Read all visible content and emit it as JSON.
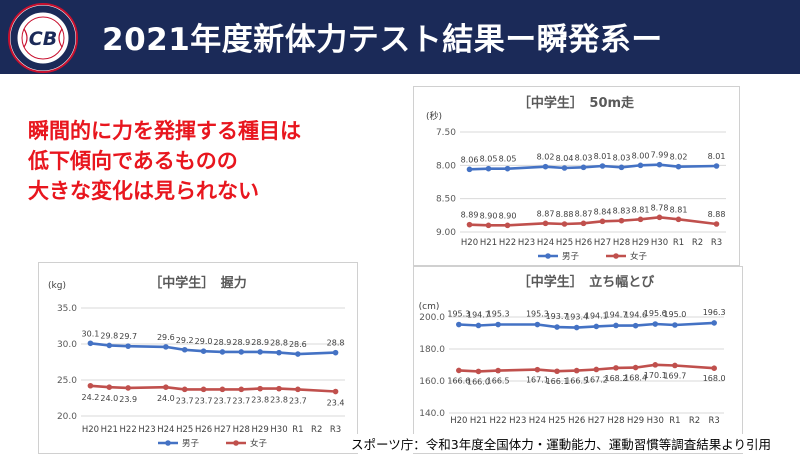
{
  "header": {
    "title": "2021年度新体力テスト結果ー瞬発系ー"
  },
  "logo": {
    "text_top": "Community Innovation",
    "text_bottom": "Baseball",
    "mark": "CB"
  },
  "message": {
    "lines": [
      "瞬間的に力を発揮する種目は",
      "低下傾向であるものの",
      "大きな変化は見られない"
    ]
  },
  "source": "スポーツ庁：令和3年度全国体力・運動能力、運動習慣等調査結果より引用",
  "colors": {
    "boys": "#4472c4",
    "girls": "#c0504d",
    "header_bg": "#1b2a58",
    "accent_red": "#e8161e"
  },
  "chart_data": [
    {
      "id": "run50",
      "type": "line",
      "title": "［中学生］　50m走",
      "unit": "(秒)",
      "categories": [
        "H20",
        "H21",
        "H22",
        "H23",
        "H24",
        "H25",
        "H26",
        "H27",
        "H28",
        "H29",
        "H30",
        "R1",
        "R2",
        "R3"
      ],
      "y_ticks": [
        "7.50",
        "8.00",
        "8.50",
        "9.00"
      ],
      "ylim": [
        9.0,
        7.5
      ],
      "y_reversed": true,
      "legend": "bottom",
      "series": [
        {
          "name": "男子",
          "color": "#4472c4",
          "values": [
            8.06,
            8.05,
            8.05,
            null,
            8.02,
            8.04,
            8.03,
            8.01,
            8.03,
            8.0,
            7.99,
            8.02,
            null,
            8.01
          ],
          "labels": [
            "8.06",
            "8.05",
            "8.05",
            "",
            "8.02",
            "8.04",
            "8.03",
            "8.01",
            "8.03",
            "8.00",
            "7.99",
            "8.02",
            "",
            "8.01"
          ]
        },
        {
          "name": "女子",
          "color": "#c0504d",
          "values": [
            8.89,
            8.9,
            8.9,
            null,
            8.87,
            8.88,
            8.87,
            8.84,
            8.83,
            8.81,
            8.78,
            8.81,
            null,
            8.88
          ],
          "labels": [
            "8.89",
            "8.90",
            "8.90",
            "",
            "8.87",
            "8.88",
            "8.87",
            "8.84",
            "8.83",
            "8.81",
            "8.78",
            "8.81",
            "",
            "8.88"
          ]
        }
      ]
    },
    {
      "id": "grip",
      "type": "line",
      "title": "［中学生］　握力",
      "unit": "(kg)",
      "categories": [
        "H20",
        "H21",
        "H22",
        "H23",
        "H24",
        "H25",
        "H26",
        "H27",
        "H28",
        "H29",
        "H30",
        "R1",
        "R2",
        "R3"
      ],
      "y_ticks": [
        "20.0",
        "25.0",
        "30.0",
        "35.0"
      ],
      "ylim": [
        20,
        35
      ],
      "legend": "bottom",
      "series": [
        {
          "name": "男子",
          "color": "#4472c4",
          "values": [
            30.1,
            29.8,
            29.7,
            null,
            29.6,
            29.2,
            29.0,
            28.9,
            28.9,
            28.9,
            28.8,
            28.6,
            null,
            28.8
          ],
          "labels": [
            "30.1",
            "29.8",
            "29.7",
            "",
            "29.6",
            "29.2",
            "29.0",
            "28.9",
            "28.9",
            "28.9",
            "28.8",
            "28.6",
            "",
            "28.8"
          ]
        },
        {
          "name": "女子",
          "color": "#c0504d",
          "values": [
            24.2,
            24.0,
            23.9,
            null,
            24.0,
            23.7,
            23.7,
            23.7,
            23.7,
            23.8,
            23.8,
            23.7,
            null,
            23.4
          ],
          "labels": [
            "24.2",
            "24.0",
            "23.9",
            "",
            "24.0",
            "23.7",
            "23.7",
            "23.7",
            "23.7",
            "23.8",
            "23.8",
            "23.7",
            "",
            "23.4"
          ]
        }
      ]
    },
    {
      "id": "jump",
      "type": "line",
      "title": "［中学生］　立ち幅とび",
      "unit": "(cm)",
      "categories": [
        "H20",
        "H21",
        "H22",
        "H23",
        "H24",
        "H25",
        "H26",
        "H27",
        "H28",
        "H29",
        "H30",
        "R1",
        "R2",
        "R3"
      ],
      "y_ticks": [
        "140.0",
        "160.0",
        "180.0",
        "200.0"
      ],
      "ylim": [
        140,
        200
      ],
      "legend": "bottom",
      "series": [
        {
          "name": "男子",
          "color": "#4472c4",
          "values": [
            195.3,
            194.7,
            195.3,
            null,
            195.3,
            193.7,
            193.4,
            194.1,
            194.7,
            194.6,
            195.6,
            195.0,
            null,
            196.3
          ],
          "labels": [
            "195.3",
            "194.7",
            "195.3",
            "",
            "195.3",
            "193.7",
            "193.4",
            "194.1",
            "194.7",
            "194.6",
            "195.6",
            "195.0",
            "",
            "196.3"
          ]
        },
        {
          "name": "女子",
          "color": "#c0504d",
          "values": [
            166.6,
            166.0,
            166.5,
            null,
            167.1,
            166.1,
            166.5,
            167.2,
            168.2,
            168.4,
            170.1,
            169.7,
            null,
            168.0
          ],
          "labels": [
            "166.6",
            "166.0",
            "166.5",
            "",
            "167.1",
            "166.1",
            "166.5",
            "167.2",
            "168.2",
            "168.4",
            "170.1",
            "169.7",
            "",
            "168.0"
          ]
        }
      ]
    }
  ]
}
